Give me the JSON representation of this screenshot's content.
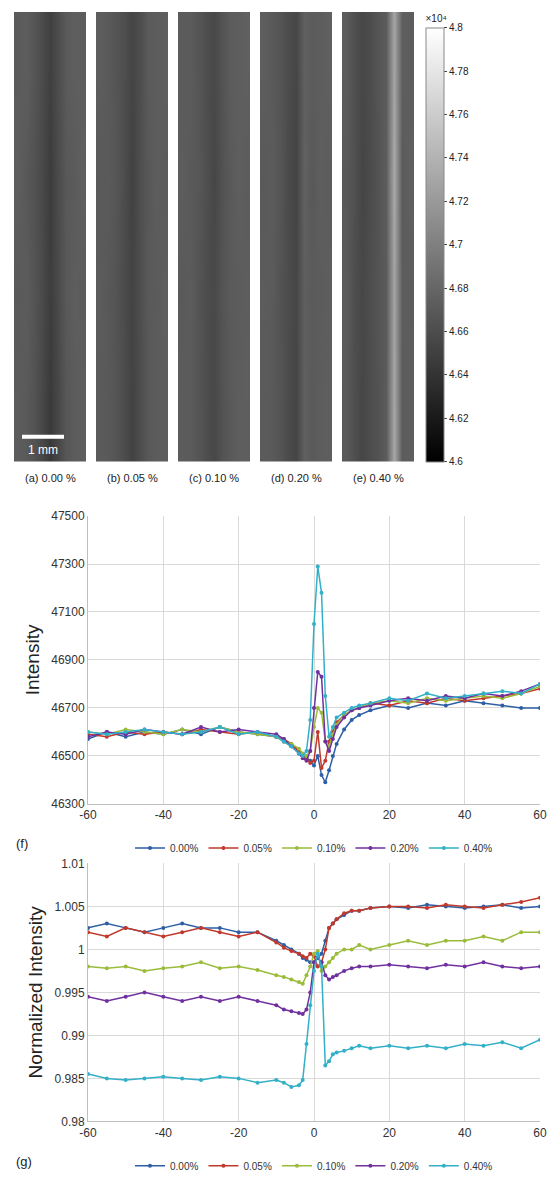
{
  "chart_data": [
    {
      "type": "heatmap",
      "panels": [
        {
          "label": "(a) 0.00 %",
          "cells": [
            [
              46720,
              46700,
              46650,
              46560,
              46450,
              46560,
              46680,
              46720,
              46740
            ],
            [
              46700,
              46720,
              46660,
              46580,
              46480,
              46580,
              46700,
              46730,
              46720
            ],
            [
              46740,
              46690,
              46640,
              46570,
              46470,
              46590,
              46690,
              46710,
              46750
            ],
            [
              46710,
              46730,
              46670,
              46590,
              46500,
              46600,
              46710,
              46740,
              46730
            ]
          ]
        },
        {
          "label": "(b) 0.05 %",
          "cells": [
            [
              46710,
              46700,
              46660,
              46600,
              46520,
              46600,
              46690,
              46720,
              46730
            ],
            [
              46720,
              46690,
              46650,
              46590,
              46530,
              46610,
              46700,
              46710,
              46740
            ],
            [
              46700,
              46710,
              46670,
              46600,
              46510,
              46620,
              46690,
              46730,
              46720
            ],
            [
              46730,
              46700,
              46660,
              46610,
              46540,
              46600,
              46710,
              46720,
              46740
            ]
          ]
        },
        {
          "label": "(c) 0.10 %",
          "cells": [
            [
              46720,
              46710,
              46670,
              46610,
              46560,
              46650,
              46700,
              46730,
              46740
            ],
            [
              46700,
              46720,
              46660,
              46600,
              46570,
              46660,
              46710,
              46720,
              46730
            ],
            [
              46730,
              46700,
              46680,
              46620,
              46550,
              46640,
              46700,
              46740,
              46720
            ],
            [
              46710,
              46720,
              46670,
              46610,
              46570,
              46650,
              46720,
              46730,
              46750
            ]
          ]
        },
        {
          "label": "(d) 0.20 %",
          "cells": [
            [
              46710,
              46700,
              46660,
              46590,
              46540,
              46750,
              46700,
              46730,
              46740
            ],
            [
              46720,
              46710,
              46650,
              46600,
              46550,
              46740,
              46710,
              46720,
              46730
            ],
            [
              46700,
              46720,
              46670,
              46580,
              46530,
              46760,
              46690,
              46740,
              46720
            ],
            [
              46730,
              46700,
              46660,
              46600,
              46550,
              46750,
              46720,
              46730,
              46750
            ]
          ]
        },
        {
          "label": "(e) 0.40 %",
          "cells": [
            [
              46700,
              46620,
              46550,
              46600,
              46650,
              46720,
              47300,
              46720,
              46740
            ],
            [
              46710,
              46610,
              46560,
              46610,
              46660,
              46710,
              47280,
              46730,
              46730
            ],
            [
              46690,
              46630,
              46540,
              46590,
              46650,
              46730,
              47320,
              46710,
              46750
            ],
            [
              46720,
              46620,
              46560,
              46600,
              46670,
              46720,
              47290,
              46740,
              46730
            ]
          ]
        }
      ],
      "zlim": [
        46000,
        48000
      ],
      "colorbar_ticks": [
        {
          "value": 46000,
          "label": "4.6"
        },
        {
          "value": 46200,
          "label": "4.62"
        },
        {
          "value": 46400,
          "label": "4.64"
        },
        {
          "value": 46600,
          "label": "4.66"
        },
        {
          "value": 46800,
          "label": "4.68"
        },
        {
          "value": 47000,
          "label": "4.7"
        },
        {
          "value": 47200,
          "label": "4.72"
        },
        {
          "value": 47400,
          "label": "4.74"
        },
        {
          "value": 47600,
          "label": "4.76"
        },
        {
          "value": 47800,
          "label": "4.78"
        },
        {
          "value": 48000,
          "label": "4.8"
        }
      ],
      "colorbar_title": "×10⁴",
      "scale_bar_label": "1 mm"
    },
    {
      "type": "line",
      "panel": "(f)",
      "y_label": "Intensity",
      "x": [
        -60,
        -55,
        -50,
        -45,
        -40,
        -35,
        -30,
        -25,
        -20,
        -15,
        -10,
        -8,
        -6,
        -4,
        -3,
        -2,
        -1,
        0,
        1,
        2,
        3,
        4,
        5,
        6,
        8,
        10,
        12,
        15,
        20,
        25,
        30,
        35,
        40,
        45,
        50,
        55,
        60
      ],
      "xlim": [
        -60,
        60
      ],
      "xticks": [
        -60,
        -40,
        -20,
        0,
        20,
        40,
        60
      ],
      "ylim": [
        46300,
        47500
      ],
      "yticks": [
        46300,
        46500,
        46700,
        46900,
        47100,
        47300,
        47500
      ],
      "grid": true,
      "legend": "bottom",
      "series": [
        {
          "name": "0.00%",
          "color": "#2e5fa6",
          "marker": "circle",
          "line_style": "solid",
          "values": [
            46570,
            46600,
            46580,
            46600,
            46590,
            46610,
            46590,
            46620,
            46600,
            46590,
            46580,
            46560,
            46540,
            46520,
            46500,
            46490,
            46480,
            46460,
            46500,
            46420,
            46390,
            46440,
            46500,
            46550,
            46610,
            46650,
            46670,
            46690,
            46710,
            46700,
            46720,
            46710,
            46730,
            46720,
            46710,
            46700,
            46700
          ]
        },
        {
          "name": "0.05%",
          "color": "#c0392b",
          "marker": "circle",
          "line_style": "solid",
          "values": [
            46590,
            46580,
            46600,
            46590,
            46600,
            46590,
            46610,
            46600,
            46590,
            46600,
            46580,
            46570,
            46550,
            46520,
            46500,
            46490,
            46470,
            46480,
            46600,
            46450,
            46480,
            46560,
            46600,
            46640,
            46670,
            46690,
            46700,
            46720,
            46710,
            46730,
            46720,
            46740,
            46730,
            46740,
            46750,
            46760,
            46780
          ]
        },
        {
          "name": "0.10%",
          "color": "#9bbb3b",
          "marker": "circle",
          "line_style": "solid",
          "values": [
            46600,
            46590,
            46610,
            46600,
            46590,
            46610,
            46600,
            46620,
            46600,
            46590,
            46580,
            46560,
            46550,
            46530,
            46510,
            46500,
            46520,
            46620,
            46700,
            46680,
            46560,
            46540,
            46590,
            46630,
            46670,
            46690,
            46700,
            46720,
            46730,
            46720,
            46740,
            46730,
            46740,
            46750,
            46740,
            46760,
            46790
          ]
        },
        {
          "name": "0.20%",
          "color": "#7030a0",
          "marker": "circle",
          "line_style": "solid",
          "values": [
            46580,
            46600,
            46590,
            46610,
            46600,
            46590,
            46620,
            46600,
            46610,
            46600,
            46590,
            46570,
            46540,
            46510,
            46490,
            46480,
            46520,
            46700,
            46850,
            46830,
            46560,
            46520,
            46570,
            46620,
            46660,
            46690,
            46700,
            46710,
            46730,
            46740,
            46730,
            46750,
            46740,
            46760,
            46750,
            46770,
            46800
          ]
        },
        {
          "name": "0.40%",
          "color": "#31b0c8",
          "marker": "circle",
          "line_style": "solid",
          "values": [
            46600,
            46590,
            46600,
            46610,
            46600,
            46590,
            46600,
            46620,
            46590,
            46600,
            46580,
            46560,
            46540,
            46510,
            46500,
            46520,
            46650,
            47050,
            47290,
            47180,
            46750,
            46580,
            46620,
            46660,
            46680,
            46700,
            46710,
            46720,
            46740,
            46730,
            46760,
            46740,
            46750,
            46760,
            46770,
            46760,
            46800
          ]
        }
      ]
    },
    {
      "type": "line",
      "panel": "(g)",
      "y_label": "Normalized Intensity",
      "x": [
        -60,
        -55,
        -50,
        -45,
        -40,
        -35,
        -30,
        -25,
        -20,
        -15,
        -10,
        -8,
        -6,
        -4,
        -3,
        -2,
        -1,
        0,
        1,
        2,
        3,
        4,
        5,
        6,
        8,
        10,
        12,
        15,
        20,
        25,
        30,
        35,
        40,
        45,
        50,
        55,
        60
      ],
      "xlim": [
        -60,
        60
      ],
      "xticks": [
        -60,
        -40,
        -20,
        0,
        20,
        40,
        60
      ],
      "ylim": [
        0.98,
        1.01
      ],
      "yticks": [
        0.98,
        0.985,
        0.99,
        0.995,
        1,
        1.005,
        1.01
      ],
      "grid": true,
      "legend": "bottom",
      "series": [
        {
          "name": "0.00%",
          "color": "#2e5fa6",
          "marker": "circle",
          "line_style": "solid",
          "values": [
            1.0025,
            1.003,
            1.0025,
            1.002,
            1.0025,
            1.003,
            1.0025,
            1.0025,
            1.002,
            1.002,
            1.001,
            1.0005,
            1.0,
            0.9995,
            0.999,
            0.9988,
            0.9985,
            0.9985,
            0.999,
            0.9995,
            1.001,
            1.0025,
            1.003,
            1.0035,
            1.004,
            1.0045,
            1.0045,
            1.0048,
            1.005,
            1.0048,
            1.0052,
            1.005,
            1.0048,
            1.005,
            1.0052,
            1.0048,
            1.005
          ]
        },
        {
          "name": "0.05%",
          "color": "#c0392b",
          "marker": "circle",
          "line_style": "solid",
          "values": [
            1.002,
            1.0015,
            1.0025,
            1.002,
            1.0015,
            1.002,
            1.0025,
            1.002,
            1.0015,
            1.002,
            1.0008,
            1.0002,
            0.9998,
            0.9995,
            0.9992,
            0.999,
            0.9995,
            0.9992,
            0.998,
            0.9985,
            1.0,
            1.0025,
            1.003,
            1.0035,
            1.0042,
            1.0045,
            1.0045,
            1.0048,
            1.005,
            1.005,
            1.0048,
            1.0052,
            1.005,
            1.0048,
            1.0052,
            1.0055,
            1.006
          ]
        },
        {
          "name": "0.10%",
          "color": "#9bbb3b",
          "marker": "circle",
          "line_style": "solid",
          "values": [
            0.998,
            0.9978,
            0.998,
            0.9975,
            0.9978,
            0.998,
            0.9985,
            0.9978,
            0.998,
            0.9976,
            0.997,
            0.9968,
            0.9965,
            0.9962,
            0.996,
            0.997,
            0.998,
            0.9995,
            0.9998,
            0.9975,
            0.998,
            0.9985,
            0.999,
            0.9995,
            1.0,
            1.0,
            1.0005,
            1.0,
            1.0005,
            1.001,
            1.0005,
            1.001,
            1.001,
            1.0015,
            1.001,
            1.002,
            1.002
          ]
        },
        {
          "name": "0.20%",
          "color": "#7030a0",
          "marker": "circle",
          "line_style": "solid",
          "values": [
            0.9945,
            0.994,
            0.9945,
            0.995,
            0.9945,
            0.994,
            0.9945,
            0.994,
            0.9945,
            0.994,
            0.9935,
            0.993,
            0.9928,
            0.9926,
            0.9925,
            0.993,
            0.995,
            0.9985,
            0.999,
            0.9985,
            0.997,
            0.9965,
            0.9968,
            0.997,
            0.9975,
            0.9978,
            0.998,
            0.998,
            0.9982,
            0.998,
            0.9978,
            0.9982,
            0.998,
            0.9985,
            0.998,
            0.9978,
            0.998
          ]
        },
        {
          "name": "0.40%",
          "color": "#31b0c8",
          "marker": "circle",
          "line_style": "solid",
          "values": [
            0.9855,
            0.985,
            0.9848,
            0.985,
            0.9852,
            0.985,
            0.9848,
            0.9852,
            0.985,
            0.9845,
            0.9848,
            0.9845,
            0.984,
            0.9842,
            0.9848,
            0.989,
            0.9935,
            0.9975,
            0.9995,
            0.998,
            0.9865,
            0.987,
            0.9878,
            0.988,
            0.9882,
            0.9885,
            0.9888,
            0.9885,
            0.9888,
            0.9885,
            0.9888,
            0.9885,
            0.989,
            0.9888,
            0.9892,
            0.9885,
            0.9895
          ]
        }
      ]
    }
  ]
}
